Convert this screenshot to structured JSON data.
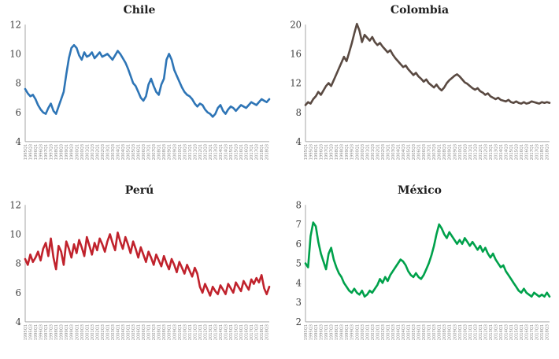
{
  "axis_color": "#a6a6a6",
  "x_tick_labels": [
    "1995Q1",
    "1995Q3",
    "1996Q1",
    "1996Q3",
    "1997Q1",
    "1997Q3",
    "1998Q1",
    "1998Q3",
    "1999Q1",
    "1999Q3",
    "2000Q1",
    "2000Q3",
    "2001Q1",
    "2001Q3",
    "2002Q1",
    "2002Q3",
    "2003Q1",
    "2003Q3",
    "2004Q1",
    "2004Q3",
    "2005Q1",
    "2005Q3",
    "2006Q1",
    "2006Q3",
    "2007Q1",
    "2007Q3",
    "2008Q1",
    "2008Q3",
    "2009Q1",
    "2009Q3",
    "2010Q1",
    "2010Q3",
    "2011Q1",
    "2011Q3",
    "2012Q1",
    "2012Q3",
    "2013Q1",
    "2013Q3",
    "2014Q1",
    "2014Q3",
    "2015Q1",
    "2015Q3",
    "2016Q1",
    "2016Q3",
    "2017Q1",
    "2017Q3",
    "2018Q1",
    "2018Q3"
  ],
  "chart_data": [
    {
      "type": "line",
      "title": "Chile",
      "color": "#2E75B6",
      "ylim": [
        4,
        12
      ],
      "yticks": [
        4,
        6,
        8,
        10,
        12
      ],
      "grid": false,
      "legend": "none",
      "values": [
        7.6,
        7.3,
        7.1,
        7.2,
        6.9,
        6.5,
        6.2,
        6.0,
        5.9,
        6.3,
        6.6,
        6.1,
        5.9,
        6.4,
        6.9,
        7.4,
        8.6,
        9.7,
        10.4,
        10.6,
        10.4,
        9.9,
        9.6,
        10.1,
        9.8,
        9.9,
        10.1,
        9.7,
        9.9,
        10.1,
        9.8,
        9.9,
        10.0,
        9.8,
        9.6,
        9.9,
        10.2,
        10.0,
        9.7,
        9.4,
        9.0,
        8.5,
        8.0,
        7.8,
        7.4,
        7.0,
        6.8,
        7.1,
        7.9,
        8.3,
        7.8,
        7.4,
        7.2,
        7.9,
        8.3,
        9.6,
        10.0,
        9.6,
        8.9,
        8.5,
        8.1,
        7.7,
        7.4,
        7.2,
        7.1,
        6.9,
        6.6,
        6.4,
        6.6,
        6.5,
        6.2,
        6.0,
        5.9,
        5.7,
        5.9,
        6.3,
        6.5,
        6.1,
        5.9,
        6.2,
        6.4,
        6.3,
        6.1,
        6.3,
        6.5,
        6.4,
        6.3,
        6.5,
        6.7,
        6.6,
        6.5,
        6.7,
        6.9,
        6.8,
        6.7,
        6.9
      ]
    },
    {
      "type": "line",
      "title": "Colombia",
      "color": "#5A4A42",
      "ylim": [
        4,
        20
      ],
      "yticks": [
        4,
        8,
        12,
        16,
        20
      ],
      "grid": false,
      "legend": "none",
      "values": [
        9.0,
        9.4,
        9.2,
        9.8,
        10.2,
        10.8,
        10.4,
        11.0,
        11.6,
        12.0,
        11.6,
        12.4,
        13.2,
        14.0,
        14.8,
        15.6,
        15.0,
        16.2,
        17.4,
        18.8,
        20.1,
        19.2,
        17.6,
        18.6,
        18.2,
        17.8,
        18.3,
        17.6,
        17.2,
        17.5,
        17.0,
        16.6,
        16.2,
        16.5,
        15.9,
        15.4,
        15.0,
        14.6,
        14.2,
        14.4,
        13.9,
        13.5,
        13.1,
        13.4,
        12.9,
        12.6,
        12.2,
        12.5,
        12.0,
        11.7,
        11.4,
        11.8,
        11.3,
        11.0,
        11.4,
        12.0,
        12.4,
        12.7,
        13.0,
        13.2,
        12.9,
        12.5,
        12.1,
        11.9,
        11.6,
        11.3,
        11.1,
        11.3,
        10.9,
        10.7,
        10.4,
        10.6,
        10.2,
        10.0,
        9.8,
        10.0,
        9.7,
        9.6,
        9.5,
        9.7,
        9.4,
        9.3,
        9.5,
        9.3,
        9.2,
        9.4,
        9.2,
        9.3,
        9.5,
        9.4,
        9.3,
        9.2,
        9.4,
        9.3,
        9.4,
        9.3
      ]
    },
    {
      "type": "line",
      "title": "Perú",
      "color": "#C0222C",
      "ylim": [
        4,
        12
      ],
      "yticks": [
        4,
        6,
        8,
        10,
        12
      ],
      "grid": false,
      "legend": "none",
      "values": [
        8.3,
        7.9,
        8.6,
        8.1,
        8.4,
        8.8,
        8.2,
        9.0,
        9.4,
        8.5,
        9.7,
        8.4,
        7.6,
        9.2,
        8.8,
        7.9,
        9.5,
        9.0,
        8.4,
        9.3,
        8.7,
        9.6,
        9.1,
        8.5,
        9.8,
        9.2,
        8.6,
        9.4,
        8.9,
        9.7,
        9.3,
        8.8,
        9.5,
        10.0,
        9.4,
        8.9,
        10.1,
        9.5,
        9.0,
        9.8,
        9.3,
        8.7,
        9.5,
        9.0,
        8.4,
        9.1,
        8.6,
        8.1,
        8.8,
        8.4,
        7.9,
        8.6,
        8.2,
        7.8,
        8.5,
        8.0,
        7.6,
        8.3,
        7.9,
        7.4,
        8.1,
        7.7,
        7.3,
        7.9,
        7.5,
        7.1,
        7.7,
        7.3,
        6.4,
        6.0,
        6.6,
        6.2,
        5.8,
        6.4,
        6.1,
        5.9,
        6.5,
        6.2,
        5.9,
        6.6,
        6.3,
        6.0,
        6.7,
        6.4,
        6.1,
        6.8,
        6.5,
        6.2,
        6.9,
        6.6,
        7.0,
        6.7,
        7.2,
        6.3,
        5.9,
        6.4
      ]
    },
    {
      "type": "line",
      "title": "México",
      "color": "#00A14B",
      "ylim": [
        2,
        8
      ],
      "yticks": [
        2,
        3,
        4,
        5,
        6,
        7,
        8
      ],
      "grid": false,
      "legend": "none",
      "values": [
        5.0,
        4.8,
        6.4,
        7.1,
        6.9,
        6.1,
        5.5,
        5.1,
        4.7,
        5.5,
        5.8,
        5.2,
        4.8,
        4.5,
        4.3,
        4.0,
        3.8,
        3.6,
        3.5,
        3.7,
        3.5,
        3.4,
        3.6,
        3.3,
        3.4,
        3.6,
        3.5,
        3.7,
        3.9,
        4.2,
        4.0,
        4.3,
        4.1,
        4.4,
        4.6,
        4.8,
        5.0,
        5.2,
        5.1,
        4.9,
        4.6,
        4.4,
        4.3,
        4.5,
        4.3,
        4.2,
        4.4,
        4.7,
        5.0,
        5.4,
        5.9,
        6.5,
        7.0,
        6.8,
        6.5,
        6.3,
        6.6,
        6.4,
        6.2,
        6.0,
        6.2,
        6.0,
        6.3,
        6.1,
        5.9,
        6.1,
        5.9,
        5.7,
        5.9,
        5.6,
        5.8,
        5.5,
        5.3,
        5.5,
        5.2,
        5.0,
        4.8,
        4.9,
        4.6,
        4.4,
        4.2,
        4.0,
        3.8,
        3.6,
        3.5,
        3.7,
        3.5,
        3.4,
        3.3,
        3.5,
        3.4,
        3.3,
        3.4,
        3.3,
        3.5,
        3.3
      ]
    }
  ]
}
